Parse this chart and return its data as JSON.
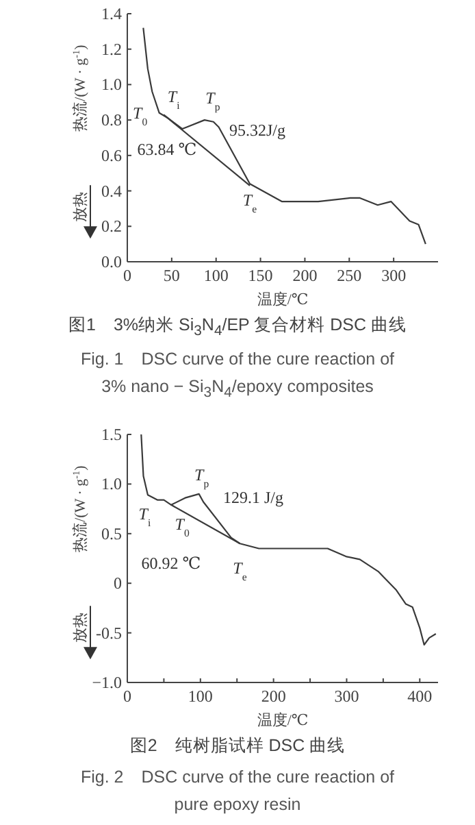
{
  "chart_data": [
    {
      "type": "line",
      "title": "图1　3%纳米 Si$_{3}$N$_{4}$/EP 复合材料 DSC 曲线",
      "subtitle": "Fig. 1　DSC curve of the cure reaction of 3% nano − Si$_{3}$N$_{4}$/epoxy composites",
      "xlabel": "温度/℃",
      "ylabel": "热流/(W · g$^{-1}$)",
      "xlim": [
        0,
        350
      ],
      "ylim": [
        0,
        1.4
      ],
      "xticks": [
        0,
        50,
        100,
        150,
        200,
        250,
        300
      ],
      "yticks": [
        {
          "value": 0,
          "label": "0.0"
        },
        0.2,
        0.4,
        0.6,
        0.8,
        {
          "value": 1,
          "label": "1.0"
        },
        1.2,
        1.4
      ],
      "series": [
        {
          "color": "#3a3a3a",
          "x": [
            18,
            23,
            28,
            36,
            46,
            62,
            67,
            87,
            97,
            103,
            138,
            174,
            215,
            251,
            262,
            282,
            297,
            318,
            328,
            336
          ],
          "values": [
            1.32,
            1.09,
            0.96,
            0.84,
            0.81,
            0.75,
            0.76,
            0.8,
            0.79,
            0.76,
            0.44,
            0.34,
            0.34,
            0.36,
            0.36,
            0.32,
            0.34,
            0.23,
            0.21,
            0.1
          ]
        },
        {
          "color": "#3a3a3a",
          "x": [
            41,
            138
          ],
          "values": [
            0.83,
            0.43
          ]
        }
      ],
      "annotations": [
        "放热",
        "95.32J/g",
        "63.84 ℃",
        {
          "text": "T$_{i}$",
          "x": 46,
          "y": 0.81
        },
        {
          "text": "T$_{0}$",
          "x": 36,
          "y": 0.84
        },
        {
          "text": "T$_{p}$",
          "x": 87,
          "y": 0.8
        },
        {
          "text": "T$_{e}$",
          "x": 138,
          "y": 0.44
        }
      ]
    },
    {
      "type": "line",
      "title": "图2　纯树脂试样 DSC 曲线",
      "subtitle": "Fig. 2　DSC curve of the cure reaction of pure epoxy resin",
      "xlabel": "温度/℃",
      "ylabel": "热流/(W · g$^{-1}$)",
      "xlim": [
        0,
        425
      ],
      "ylim": [
        -1,
        1.5
      ],
      "xticks": [
        0,
        {
          "value": 50,
          "label": null
        },
        100,
        {
          "value": 150,
          "label": null
        },
        200,
        {
          "value": 250,
          "label": null
        },
        300,
        {
          "value": 350,
          "label": null
        },
        400
      ],
      "yticks": [
        {
          "value": -1,
          "label": "−1.0"
        },
        -0.5,
        0,
        0.5,
        {
          "value": 1,
          "label": "1.0"
        },
        1.5
      ],
      "series": [
        {
          "color": "#3a3a3a",
          "x": [
            19,
            22,
            28,
            41,
            50,
            60,
            79,
            98,
            104,
            142,
            154,
            180,
            236,
            274,
            299,
            318,
            343,
            368,
            381,
            390,
            400,
            406,
            413,
            422
          ],
          "values": [
            1.5,
            1.08,
            0.89,
            0.84,
            0.84,
            0.79,
            0.86,
            0.9,
            0.82,
            0.46,
            0.4,
            0.35,
            0.35,
            0.35,
            0.27,
            0.24,
            0.12,
            -0.07,
            -0.21,
            -0.24,
            -0.45,
            -0.62,
            -0.55,
            -0.51
          ]
        },
        {
          "color": "#3a3a3a",
          "x": [
            60,
            154
          ],
          "values": [
            0.79,
            0.4
          ]
        }
      ],
      "annotations": [
        "放热",
        "129.1 J/g",
        "60.92 ℃",
        {
          "text": "T$_{p}$",
          "x": 98,
          "y": 0.9
        },
        {
          "text": "T$_{i}$",
          "x": 50,
          "y": 0.84
        },
        {
          "text": "T$_{0}$",
          "x": 60,
          "y": 0.79
        },
        {
          "text": "T$_{e}$",
          "x": 154,
          "y": 0.4
        }
      ]
    }
  ]
}
